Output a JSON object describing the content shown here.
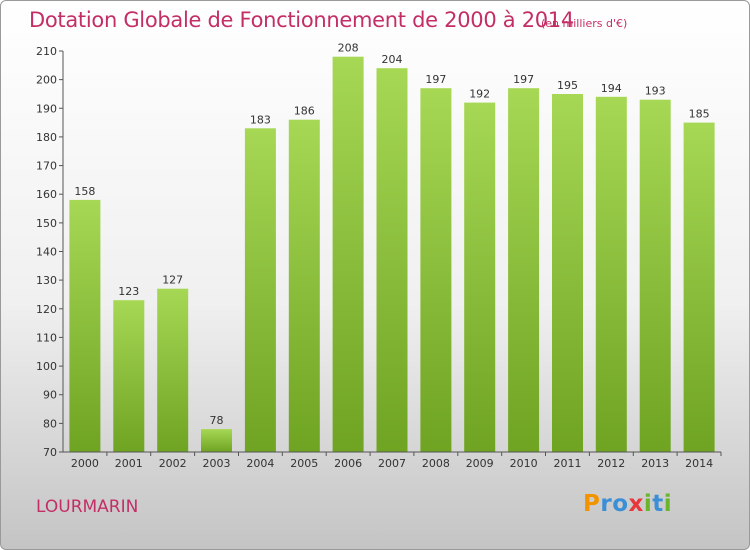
{
  "header": {
    "title": "Dotation Globale de Fonctionnement de 2000 à 2014",
    "unit": "(en milliers d'€)"
  },
  "footer": {
    "commune": "LOURMARIN",
    "logo_text": "Proxiti"
  },
  "colors": {
    "title": "#c42e66",
    "bar_light": "#a6d855",
    "bar_dark": "#6fa322"
  },
  "chart_data": {
    "type": "bar",
    "title": "Dotation Globale de Fonctionnement de 2000 à 2014",
    "subtitle": "(en milliers d'€)",
    "categories": [
      "2000",
      "2001",
      "2002",
      "2003",
      "2004",
      "2005",
      "2006",
      "2007",
      "2008",
      "2009",
      "2010",
      "2011",
      "2012",
      "2013",
      "2014"
    ],
    "values": [
      158,
      123,
      127,
      78,
      183,
      186,
      208,
      204,
      197,
      192,
      197,
      195,
      194,
      193,
      185
    ],
    "ylim": [
      70,
      210
    ],
    "yticks": [
      70,
      80,
      90,
      100,
      110,
      120,
      130,
      140,
      150,
      160,
      170,
      180,
      190,
      200,
      210
    ],
    "grid": false
  }
}
